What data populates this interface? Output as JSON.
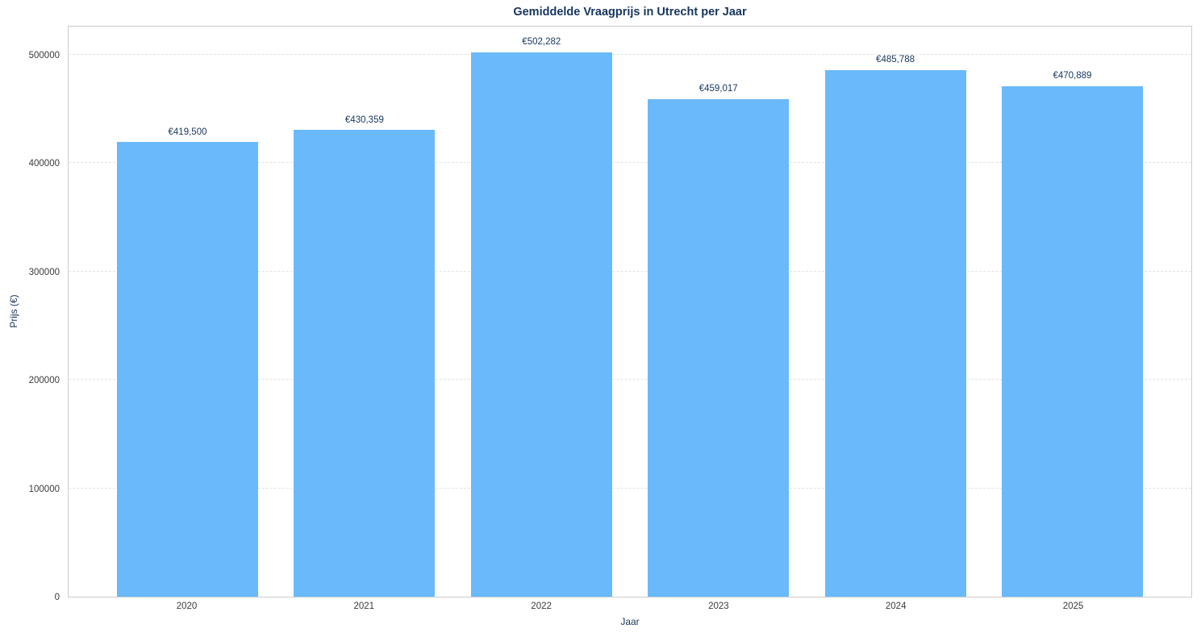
{
  "chart_data": {
    "type": "bar",
    "title": "Gemiddelde Vraagprijs in Utrecht per Jaar",
    "xlabel": "Jaar",
    "ylabel": "Prijs (€)",
    "categories": [
      "2020",
      "2021",
      "2022",
      "2023",
      "2024",
      "2025"
    ],
    "values": [
      419500,
      430359,
      502282,
      459017,
      485788,
      470889
    ],
    "bar_labels": [
      "€419,500",
      "€430,359",
      "€502,282",
      "€459,017",
      "€485,788",
      "€470,889"
    ],
    "yticks": [
      0,
      100000,
      200000,
      300000,
      400000,
      500000
    ],
    "ytick_labels": [
      "0",
      "100000",
      "200000",
      "300000",
      "400000",
      "500000"
    ],
    "ylim": [
      0,
      527400
    ],
    "grid": "horizontal-dashed",
    "legend": "none",
    "colors": {
      "bar": "#6ab9fb",
      "title": "#17365d",
      "axis_label": "#17365d",
      "bar_value_label": "#17365d",
      "tick_label": "#3b3b3b",
      "gridline": "#e3e3e3",
      "plot_border": "#cccccc",
      "background": "#ffffff"
    }
  }
}
